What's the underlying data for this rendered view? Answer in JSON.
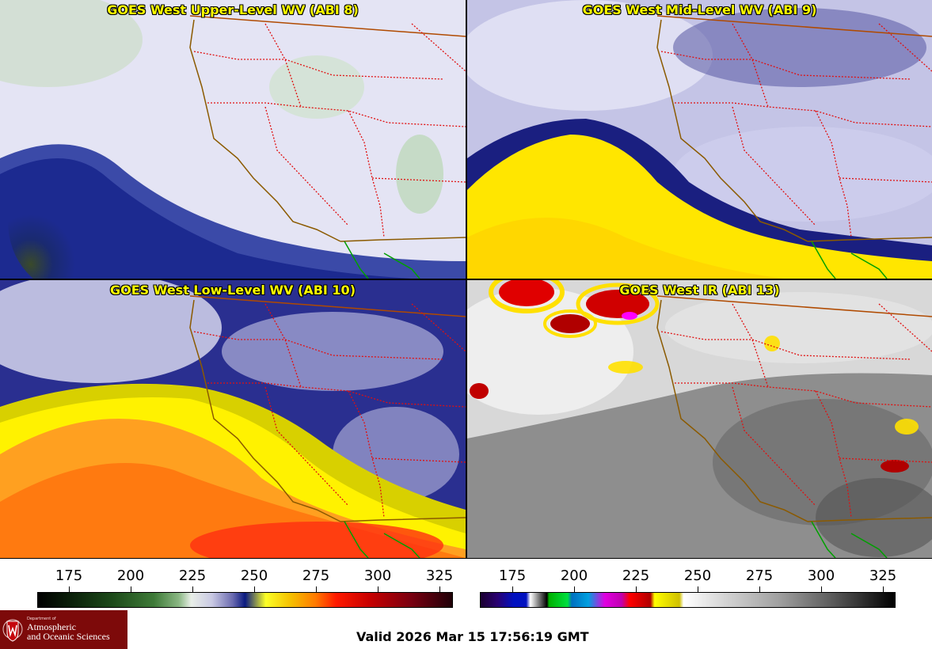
{
  "panels": {
    "upper_wv": {
      "title": "GOES West Upper-Level WV (ABI 8)"
    },
    "mid_wv": {
      "title": "GOES West Mid-Level WV (ABI 9)"
    },
    "low_wv": {
      "title": "GOES West Low-Level WV (ABI 10)"
    },
    "ir": {
      "title": "GOES West IR (ABI 13)"
    }
  },
  "colorbars": {
    "wv_ticks": [
      "175",
      "200",
      "225",
      "250",
      "275",
      "300",
      "325"
    ],
    "ir_ticks": [
      "175",
      "200",
      "225",
      "250",
      "275",
      "300",
      "325"
    ]
  },
  "logo": {
    "department": "Department of",
    "line1": "Atmospheric",
    "line2": "and Oceanic Sciences"
  },
  "valid_time": "Valid 2026 Mar 15 17:56:19 GMT",
  "colors": {
    "title_text": "#ffff00",
    "logo_bg": "#7d0a0a",
    "boundary_state": "#e01010",
    "boundary_coast": "#8b5a00",
    "boundary_mexico": "#00a000"
  }
}
